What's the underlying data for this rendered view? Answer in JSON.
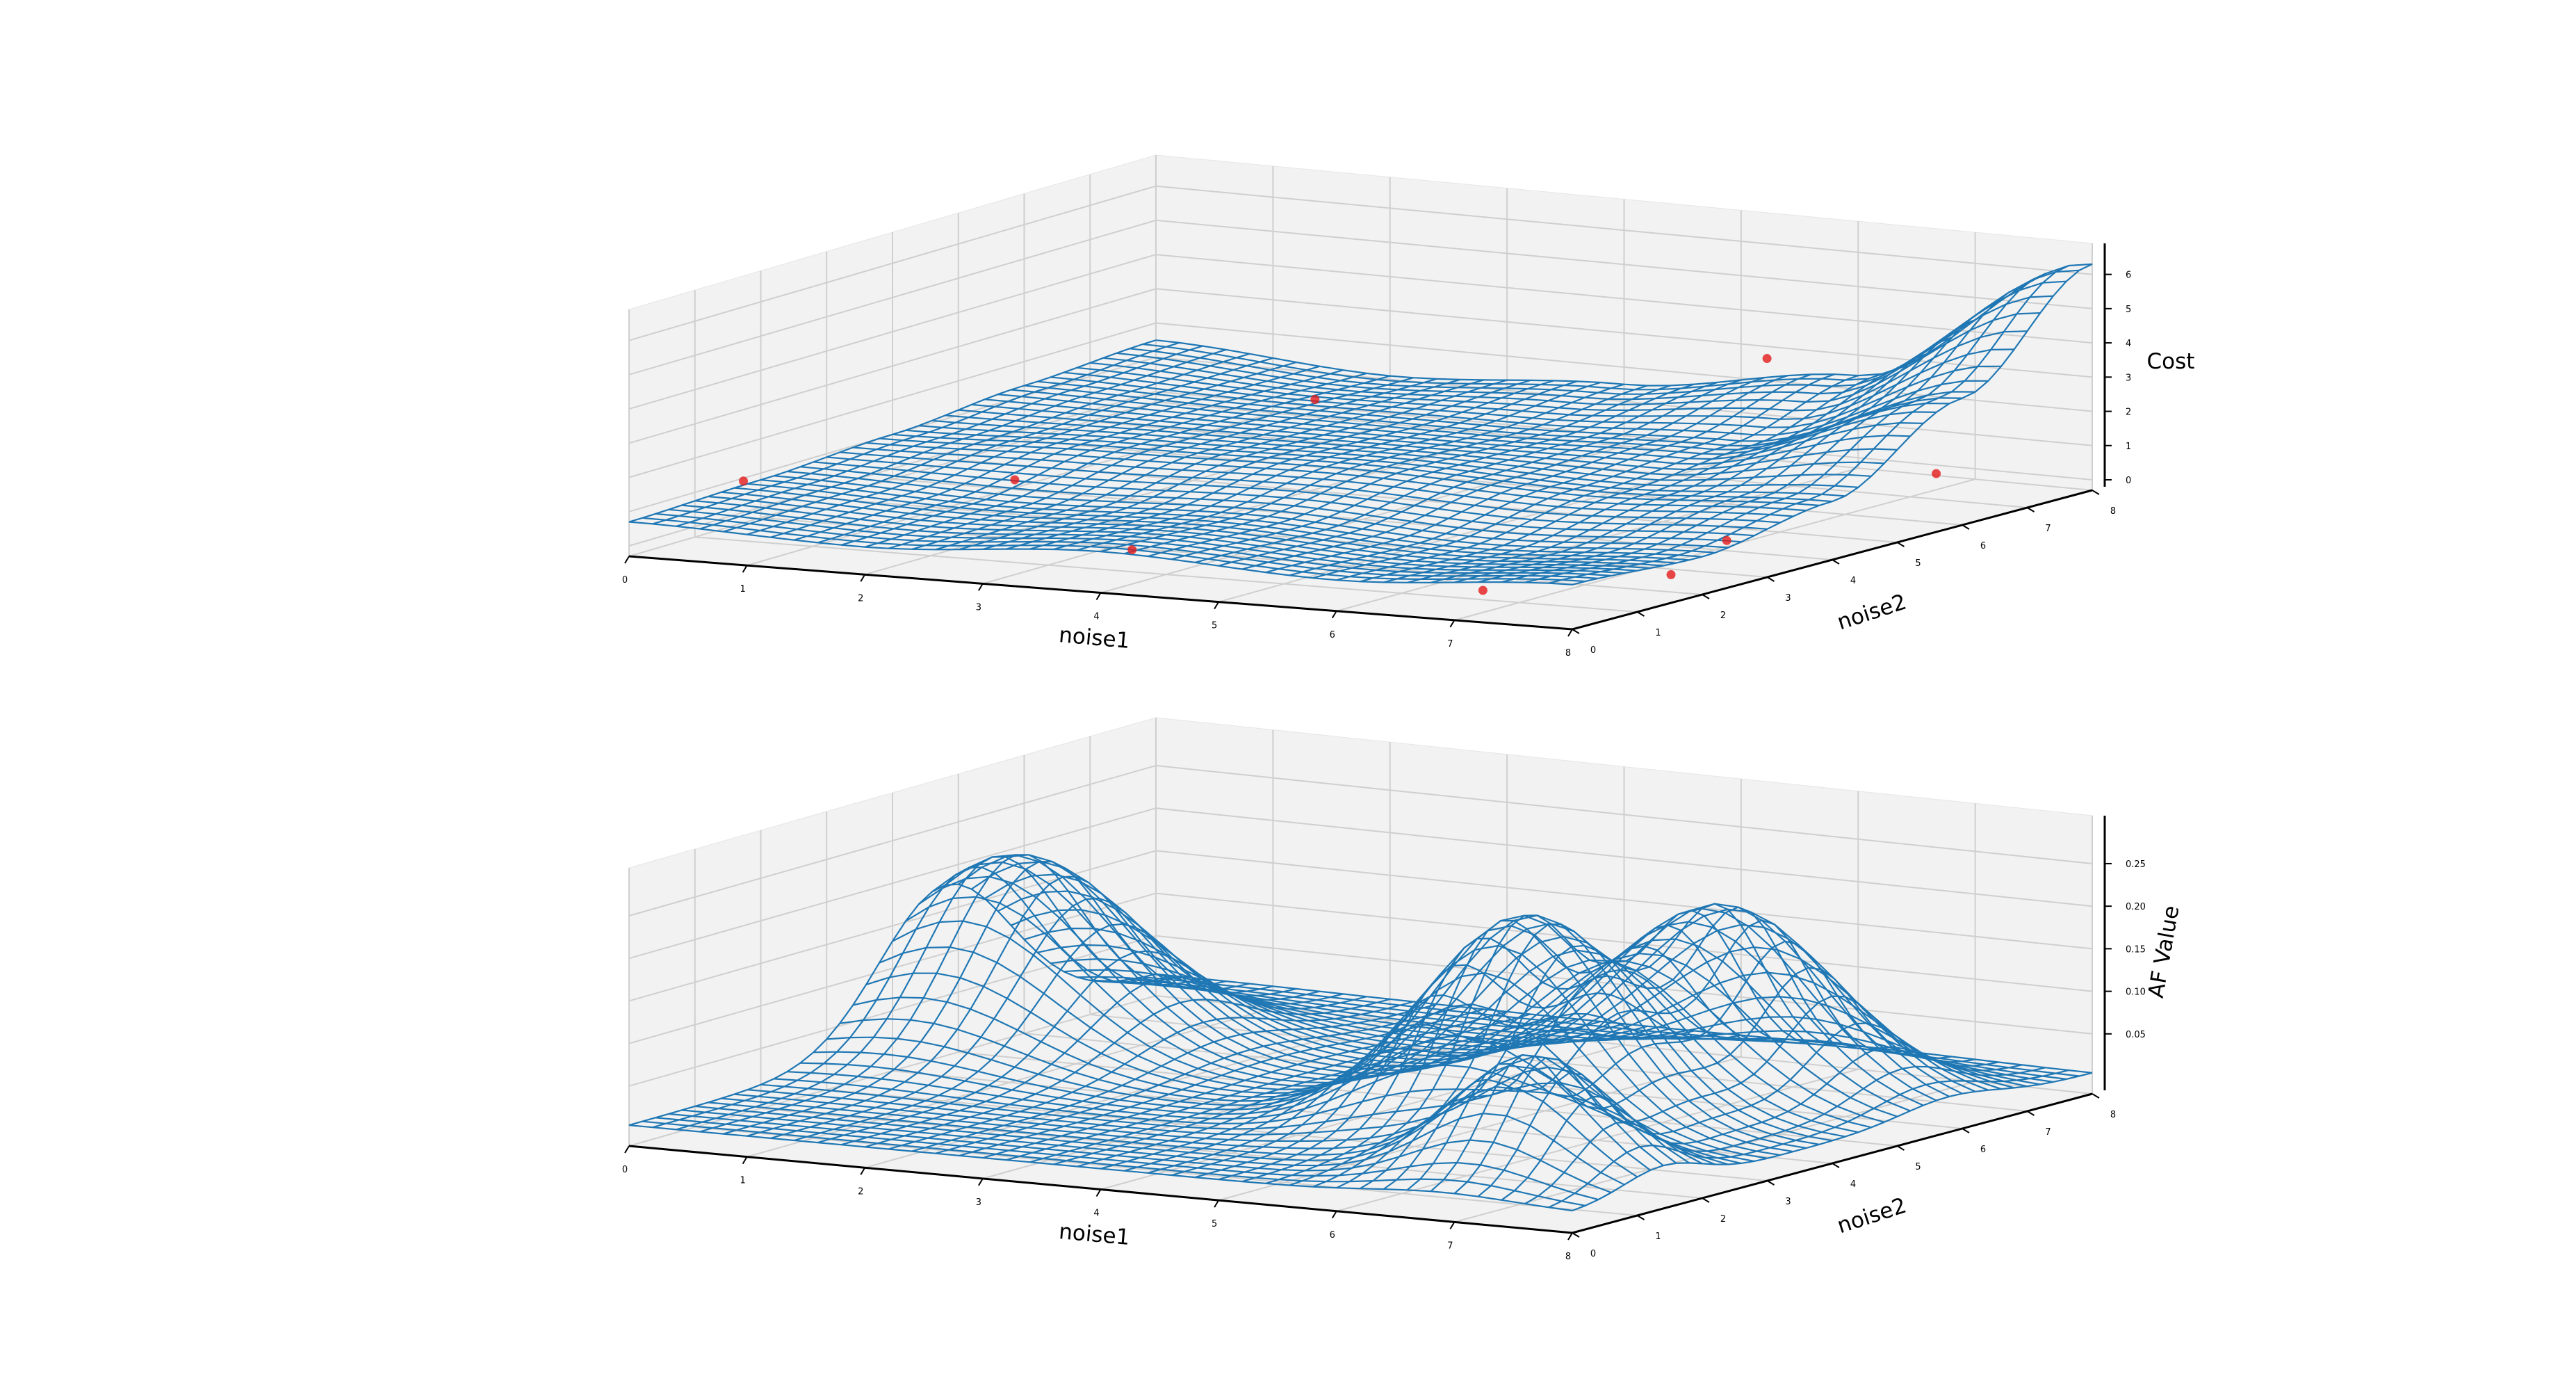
{
  "chart_data": [
    {
      "type": "surface3d",
      "title": "",
      "xlabel": "noise1",
      "ylabel": "noise2",
      "zlabel": "Cost",
      "xlim": [
        0,
        8
      ],
      "ylim": [
        0,
        8
      ],
      "zlim": [
        0,
        6.5
      ],
      "xticks": [
        "0",
        "1",
        "2",
        "3",
        "4",
        "5",
        "6",
        "7",
        "8"
      ],
      "yticks": [
        "0",
        "1",
        "2",
        "3",
        "4",
        "5",
        "6",
        "7",
        "8"
      ],
      "zticks": [
        "0",
        "1",
        "2",
        "3",
        "4",
        "5",
        "6"
      ],
      "grid": true,
      "surface_color": "#1f77b4",
      "surface": {
        "x": [
          0,
          2,
          4,
          6,
          8
        ],
        "y": [
          0,
          2,
          4,
          6,
          8
        ],
        "z": [
          [
            0.7,
            0.8,
            1.0,
            1.3,
            1.5
          ],
          [
            0.5,
            0.6,
            1.2,
            1.2,
            1.1
          ],
          [
            0.9,
            0.8,
            1.3,
            1.2,
            1.5
          ],
          [
            0.6,
            0.5,
            1.1,
            1.4,
            2.4
          ],
          [
            1.0,
            0.8,
            1.4,
            3.4,
            6.3
          ]
        ]
      },
      "points_color": "#e31a1c",
      "points": [
        {
          "x": 0.3,
          "y": 1.2,
          "z": 1.3
        },
        {
          "x": 3.6,
          "y": 1.2,
          "z": 0.2
        },
        {
          "x": 6.8,
          "y": 0.8,
          "z": 0.1
        },
        {
          "x": 7.9,
          "y": 1.7,
          "z": 0.4
        },
        {
          "x": 7.6,
          "y": 3.1,
          "z": 0.6
        },
        {
          "x": 2.2,
          "y": 6.5,
          "z": 1.3
        },
        {
          "x": 5.5,
          "y": 7.5,
          "z": 3.0
        },
        {
          "x": 8.0,
          "y": 5.6,
          "z": 1.4
        },
        {
          "x": 1.6,
          "y": 3.0,
          "z": 0.7
        }
      ]
    },
    {
      "type": "surface3d",
      "title": "",
      "xlabel": "noise1",
      "ylabel": "noise2",
      "zlabel": "AF Value",
      "xlim": [
        0,
        8
      ],
      "ylim": [
        0,
        8
      ],
      "zlim": [
        0,
        0.29
      ],
      "xticks": [
        "0",
        "1",
        "2",
        "3",
        "4",
        "5",
        "6",
        "7",
        "8"
      ],
      "yticks": [
        "0",
        "1",
        "2",
        "3",
        "4",
        "5",
        "6",
        "7",
        "8"
      ],
      "zticks": [
        "0.05",
        "0.10",
        "0.15",
        "0.20",
        "0.25"
      ],
      "grid": true,
      "surface_color": "#1f77b4",
      "peaks": [
        {
          "x": 0.6,
          "y": 4.8,
          "height": 0.22,
          "sx": 0.9,
          "sy": 1.0
        },
        {
          "x": 5.6,
          "y": 3.6,
          "height": 0.24,
          "sx": 0.75,
          "sy": 0.85
        },
        {
          "x": 6.1,
          "y": 5.8,
          "height": 0.21,
          "sx": 0.85,
          "sy": 0.75
        },
        {
          "x": 6.9,
          "y": 1.4,
          "height": 0.14,
          "sx": 0.6,
          "sy": 0.6
        }
      ]
    }
  ]
}
